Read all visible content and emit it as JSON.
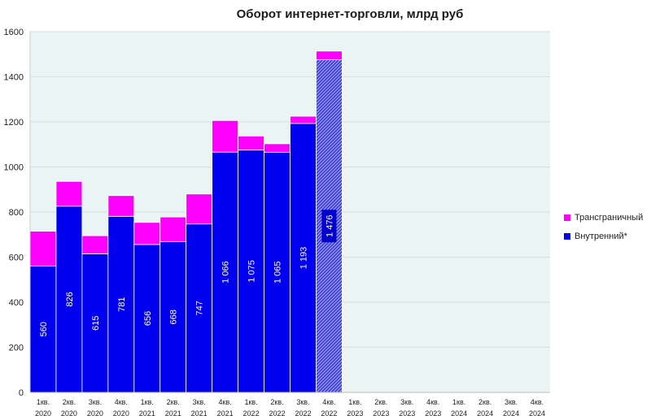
{
  "chart_data": {
    "type": "bar",
    "stacked": true,
    "title": "Оборот интернет-торговли, млрд руб",
    "xlabel": "",
    "ylabel": "",
    "ylim": [
      0,
      1600
    ],
    "yticks": [
      "0",
      "200",
      "400",
      "600",
      "800",
      "1000",
      "1200",
      "1400",
      "1600"
    ],
    "grid": true,
    "legend_position": "right",
    "categories": [
      {
        "q": "1кв.",
        "y": "2020"
      },
      {
        "q": "2кв.",
        "y": "2020"
      },
      {
        "q": "3кв.",
        "y": "2020"
      },
      {
        "q": "4кв.",
        "y": "2020"
      },
      {
        "q": "1кв.",
        "y": "2021"
      },
      {
        "q": "2кв.",
        "y": "2021"
      },
      {
        "q": "3кв.",
        "y": "2021"
      },
      {
        "q": "4кв.",
        "y": "2021"
      },
      {
        "q": "1кв.",
        "y": "2022"
      },
      {
        "q": "2кв.",
        "y": "2022"
      },
      {
        "q": "3кв.",
        "y": "2022"
      },
      {
        "q": "4кв.",
        "y": "2022"
      },
      {
        "q": "1кв.",
        "y": "2023"
      },
      {
        "q": "2кв.",
        "y": "2023"
      },
      {
        "q": "3кв.",
        "y": "2023"
      },
      {
        "q": "4кв.",
        "y": "2023"
      },
      {
        "q": "1кв.",
        "y": "2024"
      },
      {
        "q": "2кв.",
        "y": "2024"
      },
      {
        "q": "3кв.",
        "y": "2024"
      },
      {
        "q": "4кв.",
        "y": "2024"
      }
    ],
    "series": [
      {
        "name": "Внутренний*",
        "color": "#0000ee",
        "values": [
          560,
          826,
          615,
          781,
          656,
          668,
          747,
          1066,
          1075,
          1065,
          1193,
          1476,
          null,
          null,
          null,
          null,
          null,
          null,
          null,
          null
        ],
        "labels": [
          "560",
          "826",
          "615",
          "781",
          "656",
          "668",
          "747",
          "1 066",
          "1 075",
          "1 065",
          "1 193",
          "1 476",
          "",
          "",
          "",
          "",
          "",
          "",
          "",
          ""
        ]
      },
      {
        "name": "Трансграничный",
        "color": "#ff00ff",
        "values": [
          155,
          110,
          80,
          92,
          98,
          110,
          133,
          140,
          62,
          38,
          32,
          38,
          null,
          null,
          null,
          null,
          null,
          null,
          null,
          null
        ]
      }
    ],
    "forecast_index": 11,
    "forecast_color": "#6a6ae8"
  }
}
